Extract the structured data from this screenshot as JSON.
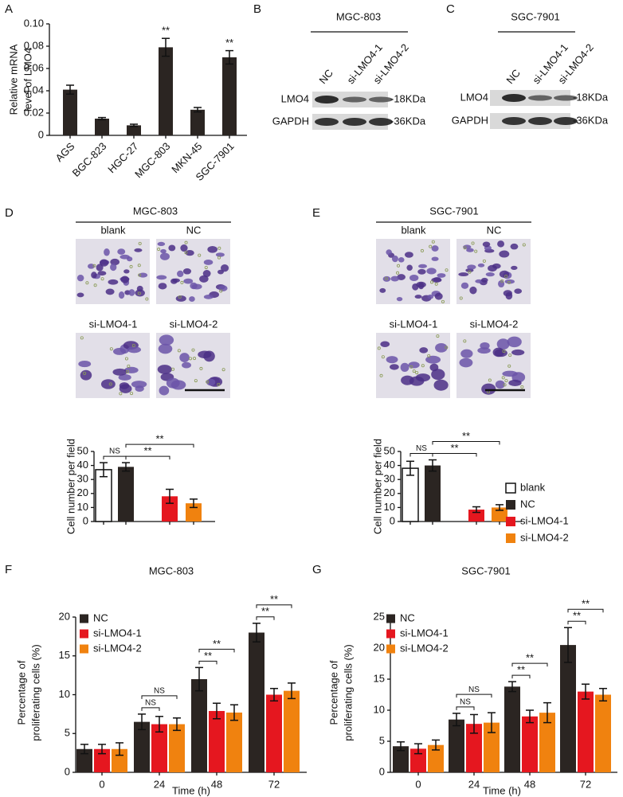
{
  "panel_labels": [
    "A",
    "B",
    "C",
    "D",
    "E",
    "F",
    "G"
  ],
  "blots": [
    {
      "title": "MGC-803",
      "lanes": [
        "NC",
        "si-LMO4-1",
        "si-LMO4-2"
      ],
      "rows": [
        {
          "protein": "LMO4",
          "size": "-18KDa"
        },
        {
          "protein": "GAPDH",
          "size": "-36KDa"
        }
      ]
    },
    {
      "title": "SGC-7901",
      "lanes": [
        "NC",
        "si-LMO4-1",
        "si-LMO4-2"
      ],
      "rows": [
        {
          "protein": "LMO4",
          "size": "-18KDa"
        },
        {
          "protein": "GAPDH",
          "size": "-36KDa"
        }
      ]
    }
  ],
  "micrographs": [
    {
      "title": "MGC-803",
      "labels": [
        "blank",
        "NC",
        "si-LMO4-1",
        "si-LMO4-2"
      ]
    },
    {
      "title": "SGC-7901",
      "labels": [
        "blank",
        "NC",
        "si-LMO4-1",
        "si-LMO4-2"
      ]
    }
  ],
  "chart_data": [
    {
      "type": "bar",
      "ylabel": [
        "Relative mRNA",
        "level of LMO4"
      ],
      "categories": [
        "AGS",
        "BGC-823",
        "HGC-27",
        "MGC-803",
        "MKN-45",
        "SGC-7901"
      ],
      "values": [
        0.041,
        0.015,
        0.009,
        0.079,
        0.023,
        0.07
      ],
      "errors": [
        0.004,
        0.001,
        0.001,
        0.008,
        0.002,
        0.006
      ],
      "color": "#2b2522",
      "ylim": [
        0,
        0.1
      ],
      "yticks": [
        0,
        0.02,
        0.04,
        0.06,
        0.08,
        {
          "value": 0.1,
          "label": "0.10"
        }
      ],
      "annotations": [
        "**",
        "**"
      ]
    },
    {
      "type": "bar",
      "ylabel": [
        "Cell number per field"
      ],
      "series": [
        {
          "color": "#ffffff",
          "values": [
            37
          ],
          "errors": [
            5
          ]
        },
        {
          "color": "#2b2522",
          "values": [
            39
          ],
          "errors": [
            3
          ]
        },
        {
          "color": "#e5171f",
          "values": [
            18
          ],
          "errors": [
            5
          ]
        },
        {
          "color": "#f0820f",
          "values": [
            13
          ],
          "errors": [
            3
          ]
        }
      ],
      "ylim": [
        0,
        50
      ],
      "yticks": [
        0,
        10,
        20,
        30,
        40,
        50
      ],
      "annotations": [
        "NS",
        "**",
        "**"
      ]
    },
    {
      "type": "bar",
      "ylabel": [
        "Cell number per field"
      ],
      "legend": "right",
      "series": [
        {
          "name": "blank",
          "color": "#ffffff",
          "values": [
            38
          ],
          "errors": [
            5
          ]
        },
        {
          "name": "NC",
          "color": "#2b2522",
          "values": [
            40
          ],
          "errors": [
            4
          ]
        },
        {
          "name": "si-LMO4-1",
          "color": "#e5171f",
          "values": [
            8.5
          ],
          "errors": [
            2
          ]
        },
        {
          "name": "si-LMO4-2",
          "color": "#f0820f",
          "values": [
            10
          ],
          "errors": [
            2
          ]
        }
      ],
      "ylim": [
        0,
        50
      ],
      "yticks": [
        0,
        10,
        20,
        30,
        40,
        50
      ],
      "annotations": [
        "NS",
        "**",
        "**"
      ]
    },
    {
      "type": "bar",
      "title": "MGC-803",
      "xlabel": "Time (h)",
      "ylabel": [
        "Percentage of",
        "proliferating cells (%)"
      ],
      "legend": "upper left",
      "categories": [
        "0",
        "24",
        "48",
        "72"
      ],
      "series": [
        {
          "name": "NC",
          "color": "#2b2522",
          "values": [
            3,
            6.5,
            12,
            18
          ],
          "errors": [
            0.6,
            1,
            1.5,
            1.2
          ]
        },
        {
          "name": "si-LMO4-1",
          "color": "#e5171f",
          "values": [
            3,
            6.2,
            7.9,
            10
          ],
          "errors": [
            0.6,
            1,
            1,
            0.8
          ]
        },
        {
          "name": "si-LMO4-2",
          "color": "#f0820f",
          "values": [
            3,
            6.2,
            7.7,
            10.5
          ],
          "errors": [
            0.8,
            0.8,
            1,
            1
          ]
        }
      ],
      "ylim": [
        0,
        20
      ],
      "yticks": [
        0,
        5,
        10,
        15,
        20
      ],
      "annotations": [
        "NS",
        "NS",
        "**",
        "**",
        "**",
        "**"
      ]
    },
    {
      "type": "bar",
      "title": "SGC-7901",
      "xlabel": "Time (h)",
      "ylabel": [
        "Percentage of",
        "proliferating cells (%)"
      ],
      "legend": "upper left",
      "categories": [
        "0",
        "24",
        "48",
        "72"
      ],
      "series": [
        {
          "name": "NC",
          "color": "#2b2522",
          "values": [
            4.2,
            8.5,
            13.8,
            20.5
          ],
          "errors": [
            0.7,
            1,
            0.8,
            2.8
          ]
        },
        {
          "name": "si-LMO4-1",
          "color": "#e5171f",
          "values": [
            3.8,
            7.8,
            9,
            13
          ],
          "errors": [
            0.8,
            1.5,
            1,
            1.2
          ]
        },
        {
          "name": "si-LMO4-2",
          "color": "#f0820f",
          "values": [
            4.4,
            8,
            9.6,
            12.5
          ],
          "errors": [
            0.8,
            1.6,
            1.6,
            1
          ]
        }
      ],
      "ylim": [
        0,
        25
      ],
      "yticks": [
        0,
        5,
        10,
        15,
        20,
        25
      ],
      "annotations": [
        "NS",
        "NS",
        "**",
        "**",
        "**",
        "**"
      ]
    }
  ]
}
